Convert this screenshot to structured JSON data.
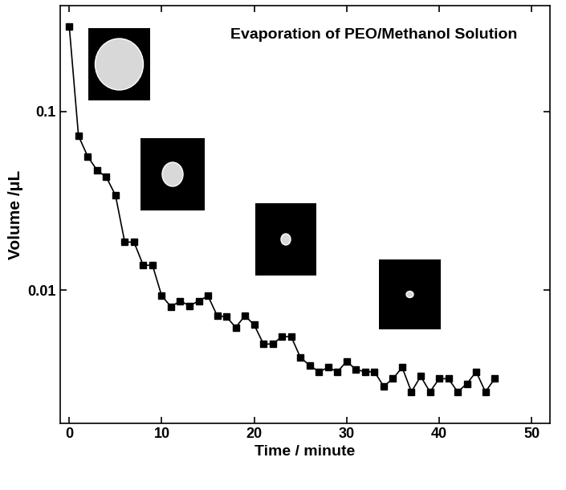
{
  "chart_data": {
    "type": "line",
    "annotation": "Evaporation of PEO/Methanol Solution",
    "x_label": "Time / minute",
    "y_label": "Volume /μL",
    "x": [
      0,
      1,
      2,
      3,
      4,
      5,
      6,
      7,
      8,
      9,
      10,
      11,
      12,
      13,
      14,
      15,
      16,
      17,
      18,
      19,
      20,
      21,
      22,
      23,
      24,
      25,
      26,
      27,
      28,
      29,
      30,
      31,
      32,
      33,
      34,
      35,
      36,
      37,
      38,
      39,
      40,
      41,
      42,
      43,
      44,
      45,
      46
    ],
    "values": [
      0.3,
      0.073,
      0.056,
      0.047,
      0.043,
      0.034,
      0.0186,
      0.0186,
      0.0138,
      0.0138,
      0.0093,
      0.0081,
      0.0087,
      0.0082,
      0.0087,
      0.0093,
      0.0072,
      0.0071,
      0.0062,
      0.0072,
      0.0064,
      0.005,
      0.005,
      0.0055,
      0.0055,
      0.0042,
      0.0038,
      0.0035,
      0.0037,
      0.0035,
      0.004,
      0.0036,
      0.0035,
      0.0035,
      0.0029,
      0.0032,
      0.0037,
      0.0027,
      0.0033,
      0.0027,
      0.0032,
      0.0032,
      0.0027,
      0.003,
      0.0035,
      0.0027,
      0.0032
    ],
    "xlim": [
      -1,
      52
    ],
    "ylim": [
      0.0018,
      0.39
    ],
    "xticks": [
      0,
      10,
      20,
      30,
      40,
      50
    ],
    "yticks": [
      0.01,
      0.1
    ],
    "log": "y",
    "color": "#000000",
    "marker": "s",
    "line_style": "solid"
  }
}
